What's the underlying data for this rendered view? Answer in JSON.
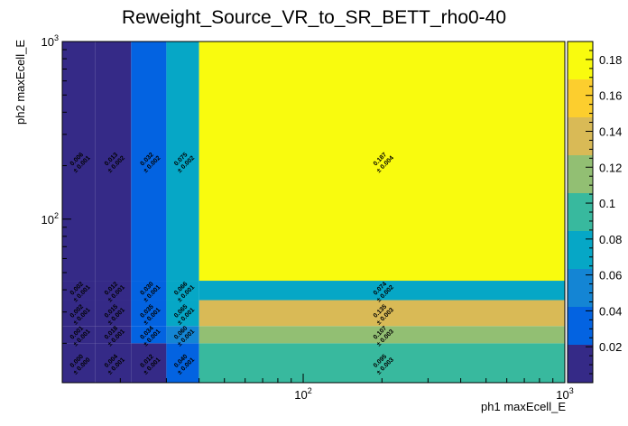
{
  "chart_data": {
    "type": "heatmap",
    "title": "Reweight_Source_VR_to_SR_BETT_rho0-40",
    "xlabel": "ph1 maxEcell_E",
    "ylabel": "ph2 maxEcell_E",
    "x_scale": "log",
    "y_scale": "log",
    "xlim": [
      12,
      1000
    ],
    "ylim": [
      12,
      1000
    ],
    "x_edges": [
      12,
      16,
      22,
      30,
      40,
      1000
    ],
    "y_edges": [
      12,
      20,
      25,
      35,
      45,
      1000
    ],
    "x_tick_labels": [
      "10^2",
      "10^3"
    ],
    "y_tick_labels": [
      "10^2",
      "10^3"
    ],
    "colorbar": {
      "min": 0,
      "max": 0.19,
      "ticks": [
        "0.02",
        "0.04",
        "0.06",
        "0.08",
        "0.1",
        "0.12",
        "0.14",
        "0.16",
        "0.18"
      ]
    },
    "values": [
      [
        0.0,
        0.004,
        0.012,
        0.04,
        0.095
      ],
      [
        0.001,
        0.018,
        0.034,
        0.06,
        0.107
      ],
      [
        0.002,
        0.015,
        0.035,
        0.065,
        0.135
      ],
      [
        0.002,
        0.012,
        0.03,
        0.066,
        0.074
      ],
      [
        0.006,
        0.013,
        0.032,
        0.075,
        0.187
      ]
    ],
    "errors": [
      [
        0.0,
        0.001,
        0.001,
        0.001,
        0.003
      ],
      [
        0.001,
        0.001,
        0.001,
        0.001,
        0.003
      ],
      [
        0.001,
        0.001,
        0.001,
        0.001,
        0.003
      ],
      [
        0.001,
        0.001,
        0.001,
        0.001,
        0.002
      ],
      [
        0.001,
        0.002,
        0.002,
        0.002,
        0.004
      ]
    ],
    "cell_labels": [
      [
        [
          "0.000",
          "± 0.000"
        ],
        [
          "0.004",
          "± 0.001"
        ],
        [
          "0.012",
          "± 0.001"
        ],
        [
          "0.040",
          "± 0.001"
        ],
        [
          "0.095",
          "± 0.003"
        ]
      ],
      [
        [
          "0.001",
          "± 0.001"
        ],
        [
          "0.018",
          "± 0.001"
        ],
        [
          "0.034",
          "± 0.001"
        ],
        [
          "0.060",
          "± 0.001"
        ],
        [
          "0.107",
          "± 0.003"
        ]
      ],
      [
        [
          "0.002",
          "± 0.001"
        ],
        [
          "0.015",
          "± 0.001"
        ],
        [
          "0.035",
          "± 0.001"
        ],
        [
          "0.065",
          "± 0.001"
        ],
        [
          "0.135",
          "± 0.003"
        ]
      ],
      [
        [
          "0.002",
          "± 0.001"
        ],
        [
          "0.012",
          "± 0.001"
        ],
        [
          "0.030",
          "± 0.001"
        ],
        [
          "0.066",
          "± 0.001"
        ],
        [
          "0.074",
          "± 0.002"
        ]
      ],
      [
        [
          "0.006",
          "± 0.001"
        ],
        [
          "0.013",
          "± 0.002"
        ],
        [
          "0.032",
          "± 0.002"
        ],
        [
          "0.075",
          "± 0.002"
        ],
        [
          "0.187",
          "± 0.004"
        ]
      ]
    ],
    "colormap": [
      "#352a87",
      "#0363e1",
      "#1485d4",
      "#06a7c6",
      "#38b99e",
      "#92bf73",
      "#d9ba56",
      "#fcce2e",
      "#f9fb0e"
    ]
  }
}
